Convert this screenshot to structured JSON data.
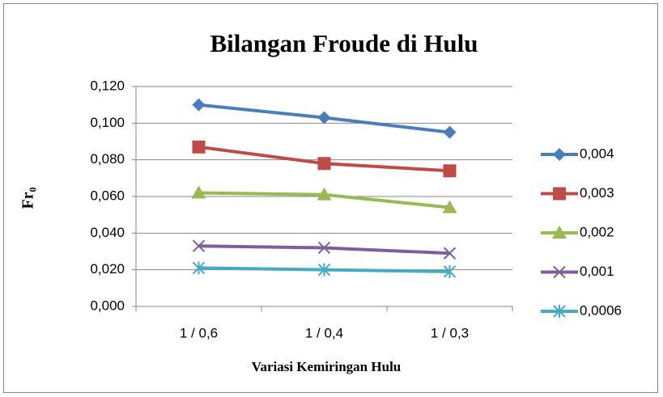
{
  "chart_data": {
    "type": "line",
    "title": "Bilangan Froude di Hulu",
    "x_label": "Variasi Kemiringan Hulu",
    "y_label": "Fr₀",
    "categories": [
      "1 / 0,6",
      "1 / 0,4",
      "1 / 0,3"
    ],
    "series": [
      {
        "name": "0,004",
        "color": "#4a7ebb",
        "marker": "diamond",
        "values": [
          0.11,
          0.103,
          0.095
        ]
      },
      {
        "name": "0,003",
        "color": "#be4b48",
        "marker": "square",
        "values": [
          0.087,
          0.078,
          0.074
        ]
      },
      {
        "name": "0,002",
        "color": "#98b954",
        "marker": "triangle",
        "values": [
          0.062,
          0.061,
          0.054
        ]
      },
      {
        "name": "0,001",
        "color": "#7d5fa0",
        "marker": "x",
        "values": [
          0.033,
          0.032,
          0.029
        ]
      },
      {
        "name": "0,0006",
        "color": "#46aac5",
        "marker": "star",
        "values": [
          0.021,
          0.02,
          0.019
        ]
      }
    ],
    "ylim": [
      0,
      0.12
    ],
    "yticks": [
      {
        "value": 0,
        "label": "0,000"
      },
      {
        "value": 0.02,
        "label": "0,020"
      },
      {
        "value": 0.04,
        "label": "0,040"
      },
      {
        "value": 0.06,
        "label": "0,060"
      },
      {
        "value": 0.08,
        "label": "0,080"
      },
      {
        "value": 0.1,
        "label": "0,100"
      },
      {
        "value": 0.12,
        "label": "0,120"
      }
    ],
    "grid": true,
    "legend": "right"
  }
}
